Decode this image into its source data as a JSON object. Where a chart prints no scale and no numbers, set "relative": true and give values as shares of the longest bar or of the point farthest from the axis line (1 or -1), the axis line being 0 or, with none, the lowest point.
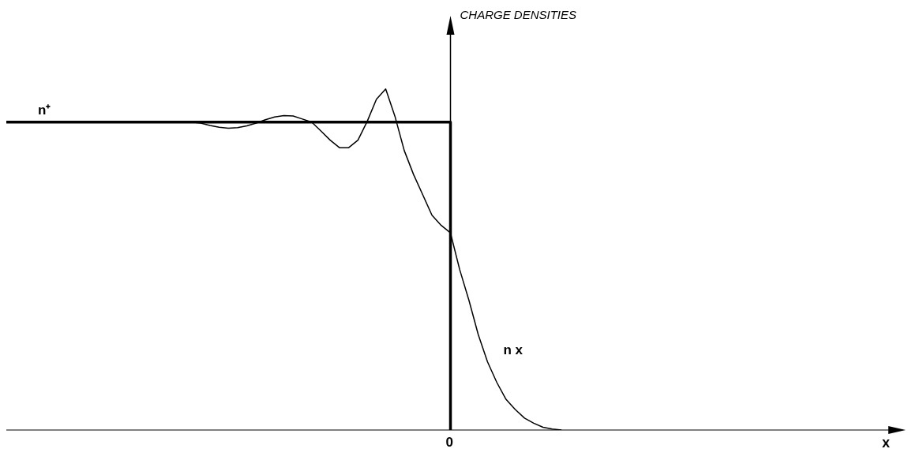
{
  "chart_data": {
    "type": "line",
    "relative": true,
    "xlabel": "x",
    "annotations": [
      "CHARGE DENSITIES",
      "0"
    ],
    "marker": "none",
    "line_style": "solid",
    "categories": [
      null,
      null,
      null,
      null,
      null,
      null,
      null,
      null,
      null,
      null,
      null,
      null,
      null,
      null,
      null,
      null,
      null,
      null,
      null,
      null,
      null,
      null,
      null,
      null,
      null,
      null,
      null,
      null,
      null,
      null,
      null,
      null,
      null,
      null,
      null,
      null,
      null,
      null,
      null,
      null,
      null,
      null,
      null,
      null,
      null,
      null,
      null,
      null,
      null,
      null,
      null,
      null,
      null,
      null,
      null,
      null,
      null,
      null,
      null,
      null,
      null,
      null,
      null,
      null,
      null,
      null,
      null,
      null,
      null,
      null,
      null,
      null,
      null,
      null,
      null,
      null,
      null,
      null,
      null,
      null,
      null,
      null,
      null,
      null,
      null,
      null,
      null,
      null,
      null,
      null,
      null,
      null,
      null,
      null,
      null,
      null,
      null
    ],
    "series": [
      {
        "name": "n⁺",
        "type": "step",
        "color": "#000000",
        "values": [
          0.903,
          0.903,
          0.903,
          0.903,
          0.903,
          0.903,
          0.903,
          0.903,
          0.903,
          0.903,
          0.903,
          0.903,
          0.903,
          0.903,
          0.903,
          0.903,
          0.903,
          0.903,
          0.903,
          0.903,
          0.903,
          0.903,
          0.903,
          0.903,
          0.903,
          0.903,
          0.903,
          0.903,
          0.903,
          0.903,
          0.903,
          0.903,
          0.903,
          0.903,
          0.903,
          0.903,
          0.903,
          0.903,
          0.903,
          0.903,
          0.903,
          0.903,
          0.903,
          0.903,
          0.903,
          0.903,
          0.903,
          0.903,
          0,
          null,
          null,
          null,
          null,
          null,
          null,
          null,
          null,
          null,
          null,
          null,
          null,
          null,
          null,
          null,
          null,
          null,
          null,
          null,
          null,
          null,
          null,
          null,
          null,
          null,
          null,
          null,
          null,
          null,
          null,
          null,
          null,
          null,
          null,
          null,
          null,
          null,
          null,
          null,
          null,
          null,
          null,
          null,
          null,
          null,
          null,
          null,
          null
        ]
      },
      {
        "name": "n x",
        "color": "#000000",
        "values": [
          0.903,
          0.903,
          0.903,
          0.903,
          0.903,
          0.903,
          0.903,
          0.903,
          0.903,
          0.903,
          0.903,
          0.903,
          0.903,
          0.903,
          0.903,
          0.903,
          0.903,
          0.903,
          0.903,
          0.903,
          0.903,
          0.9,
          0.893,
          0.888,
          0.885,
          0.887,
          0.892,
          0.9,
          0.91,
          0.918,
          0.922,
          0.921,
          0.912,
          0.903,
          0.877,
          0.85,
          0.828,
          0.828,
          0.85,
          0.905,
          0.97,
          1.0,
          0.92,
          0.82,
          0.75,
          0.69,
          0.63,
          0.6,
          0.578,
          0.47,
          0.38,
          0.28,
          0.2,
          0.14,
          0.09,
          0.06,
          0.035,
          0.02,
          0.008,
          0.003,
          0,
          null,
          null,
          null,
          null,
          null,
          null,
          null,
          null,
          null,
          null,
          null,
          null,
          null,
          null,
          null,
          null,
          null,
          null,
          null,
          null,
          null,
          null,
          null,
          null,
          null,
          null,
          null,
          null,
          null,
          null,
          null,
          null,
          null,
          null,
          null,
          null
        ]
      }
    ]
  }
}
